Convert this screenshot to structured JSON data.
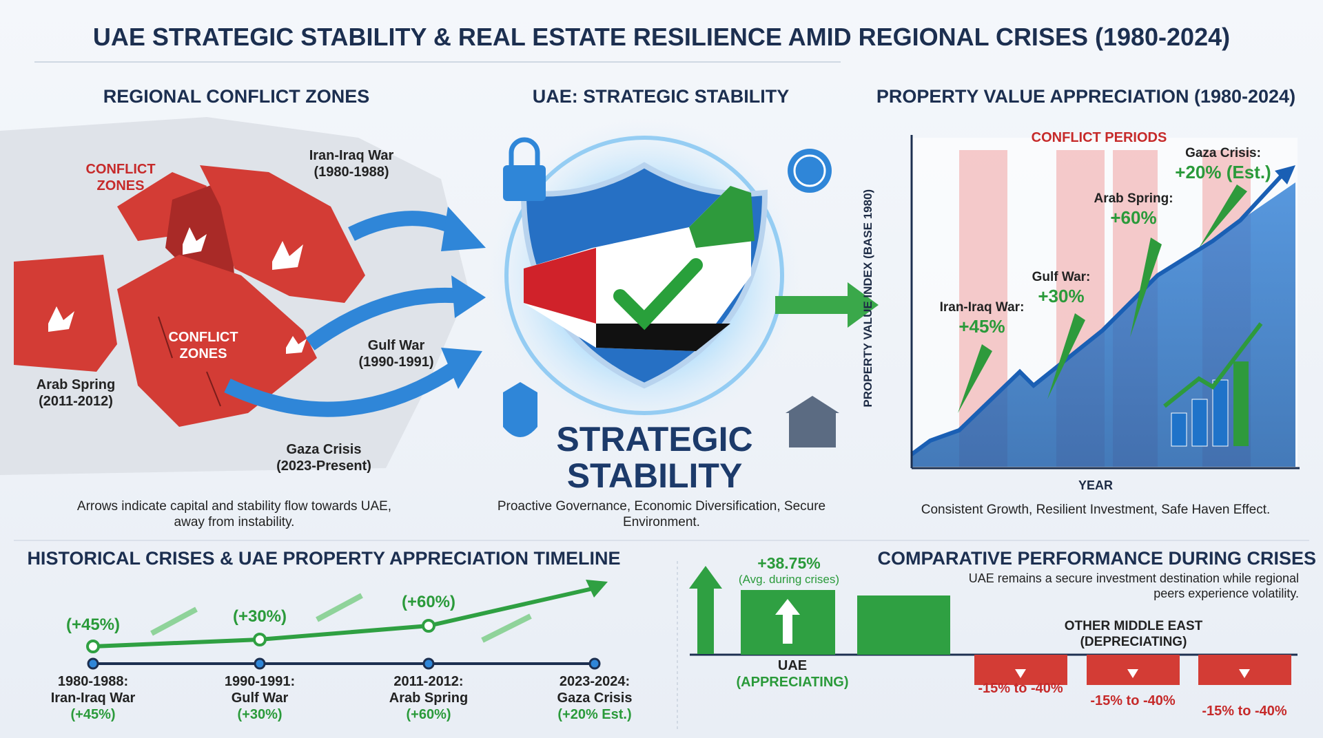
{
  "title": "UAE STRATEGIC STABILITY & REAL ESTATE RESILIENCE AMID REGIONAL CRISES (1980-2024)",
  "map": {
    "heading": "REGIONAL CONFLICT ZONES",
    "zone_labels": [
      "CONFLICT ZONES",
      "CONFLICT ZONES"
    ],
    "events": [
      {
        "name": "Iran-Iraq War",
        "period": "(1980-1988)"
      },
      {
        "name": "Gulf War",
        "period": "(1990-1991)"
      },
      {
        "name": "Arab Spring",
        "period": "(2011-2012)"
      },
      {
        "name": "Gaza Crisis",
        "period": "(2023-Present)"
      }
    ],
    "caption": "Arrows indicate capital and stability flow towards UAE, away from instability."
  },
  "center": {
    "heading": "UAE: STRATEGIC STABILITY",
    "badge": "STRATEGIC STABILITY",
    "caption": "Proactive Governance, Economic Diversification, Secure Environment."
  },
  "appreciation": {
    "heading": "PROPERTY VALUE APPRECIATION (1980-2024)",
    "band_label": "CONFLICT PERIODS",
    "y_label": "PROPERTY VALUE INDEX (BASE 1980)",
    "x_label": "YEAR",
    "annotations": [
      {
        "event": "Iran-Iraq War:",
        "change": "+45%"
      },
      {
        "event": "Gulf War:",
        "change": "+30%"
      },
      {
        "event": "Arab Spring:",
        "change": "+60%"
      },
      {
        "event": "Gaza Crisis:",
        "change": "+20% (Est.)"
      }
    ],
    "caption": "Consistent Growth, Resilient Investment, Safe Haven Effect."
  },
  "timeline": {
    "heading": "HISTORICAL CRISES & UAE PROPERTY APPRECIATION TIMELINE",
    "points": [
      {
        "badge": "(+45%)",
        "period": "1980-1988:",
        "event": "Iran-Iraq War",
        "change": "(+45%)"
      },
      {
        "badge": "(+30%)",
        "period": "1990-1991:",
        "event": "Gulf War",
        "change": "(+30%)"
      },
      {
        "badge": "(+60%)",
        "period": "2011-2012:",
        "event": "Arab Spring",
        "change": "(+60%)"
      },
      {
        "period": "2023-2024:",
        "event": "Gaza Crisis",
        "change": "(+20% Est.)"
      }
    ]
  },
  "comparison": {
    "heading": "COMPARATIVE PERFORMANCE DURING CRISES",
    "note": "UAE remains a secure investment destination while regional peers experience volatility.",
    "uae_value": "+38.75%",
    "uae_value_note": "(Avg. during crises)",
    "uae_label": "UAE",
    "uae_sublabel": "(APPRECIATING)",
    "others_label": "OTHER MIDDLE EAST (DEPRECIATING)",
    "others_values": [
      "-15% to -40%",
      "-15% to -40%",
      "-15% to -40%"
    ]
  }
}
